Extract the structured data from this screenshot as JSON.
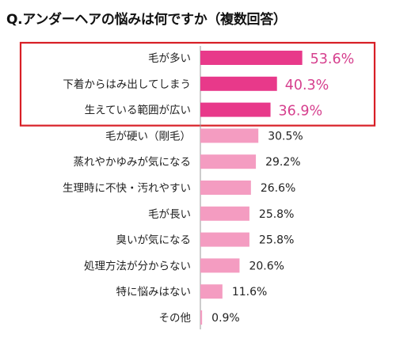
{
  "chart_data": {
    "type": "bar",
    "orientation": "horizontal",
    "title": "Q.アンダーヘアの悩みは何ですか（複数回答）",
    "categories": [
      "毛が多い",
      "下着からはみ出してしまう",
      "生えている範囲が広い",
      "毛が硬い（剛毛）",
      "蒸れやかゆみが気になる",
      "生理時に不快・汚れやすい",
      "毛が長い",
      "臭いが気になる",
      "処理方法が分からない",
      "特に悩みはない",
      "その他"
    ],
    "values": [
      53.6,
      40.3,
      36.9,
      30.5,
      29.2,
      26.6,
      25.8,
      25.8,
      20.6,
      11.6,
      0.9
    ],
    "value_labels": [
      "53.6%",
      "40.3%",
      "36.9%",
      "30.5%",
      "29.2%",
      "26.6%",
      "25.8%",
      "25.8%",
      "20.6%",
      "11.6%",
      "0.9%"
    ],
    "highlighted_count": 3,
    "xlim": [
      0,
      100
    ],
    "grid": false,
    "legend": "none"
  },
  "colors": {
    "highlight_bar": "#e8398a",
    "normal_bar": "#f49cc1",
    "highlight_text": "#d6408e",
    "highlight_box": "#d81f26",
    "axis": "#999999"
  }
}
